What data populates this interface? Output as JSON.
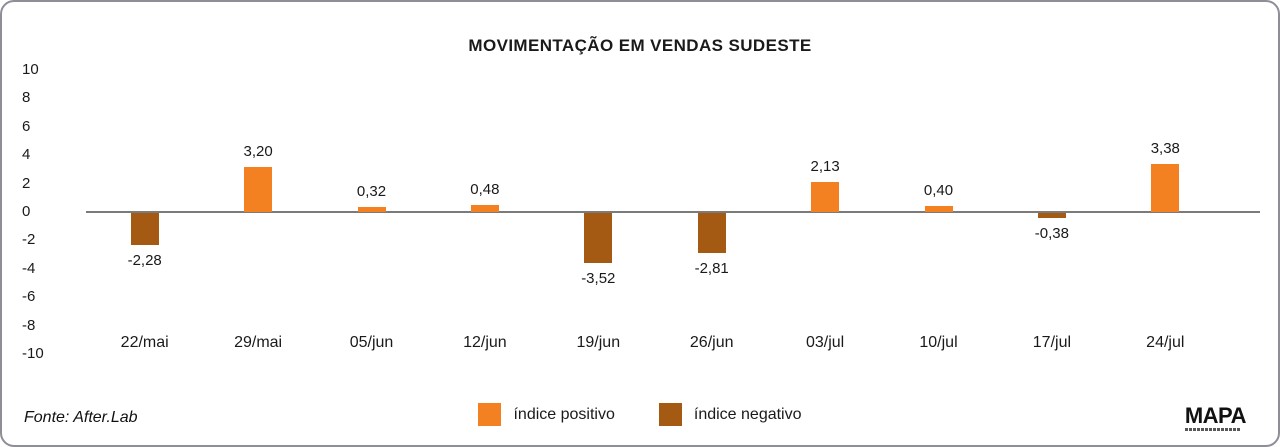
{
  "title": "MOVIMENTAÇÃO EM VENDAS SUDESTE",
  "chart_data": {
    "type": "bar",
    "title": "MOVIMENTAÇÃO EM VENDAS SUDESTE",
    "categories": [
      "22/mai",
      "29/mai",
      "05/jun",
      "12/jun",
      "19/jun",
      "26/jun",
      "03/jul",
      "10/jul",
      "17/jul",
      "24/jul"
    ],
    "values": [
      -2.28,
      3.2,
      0.32,
      0.48,
      -3.52,
      -2.81,
      2.13,
      0.4,
      -0.38,
      3.38
    ],
    "value_labels": [
      "-2,28",
      "3,20",
      "0,32",
      "0,48",
      "-3,52",
      "-2,81",
      "2,13",
      "0,40",
      "-0,38",
      "3,38"
    ],
    "y_ticks": [
      10,
      8,
      6,
      4,
      2,
      0,
      -2,
      -4,
      -6,
      -8,
      -10
    ],
    "ylim": [
      -10,
      10
    ],
    "grid": false,
    "xlabel": "",
    "ylabel": "",
    "positive_color": "#f38122",
    "negative_color": "#a45a13",
    "axis_line_color": "#7b7b7b",
    "legend_position": "bottom-center",
    "legend": [
      {
        "label": "índice positivo",
        "color": "#f38122"
      },
      {
        "label": "índice negativo",
        "color": "#a45a13"
      }
    ]
  },
  "footer": {
    "source": "Fonte: After.Lab",
    "logo": "MAPA"
  }
}
